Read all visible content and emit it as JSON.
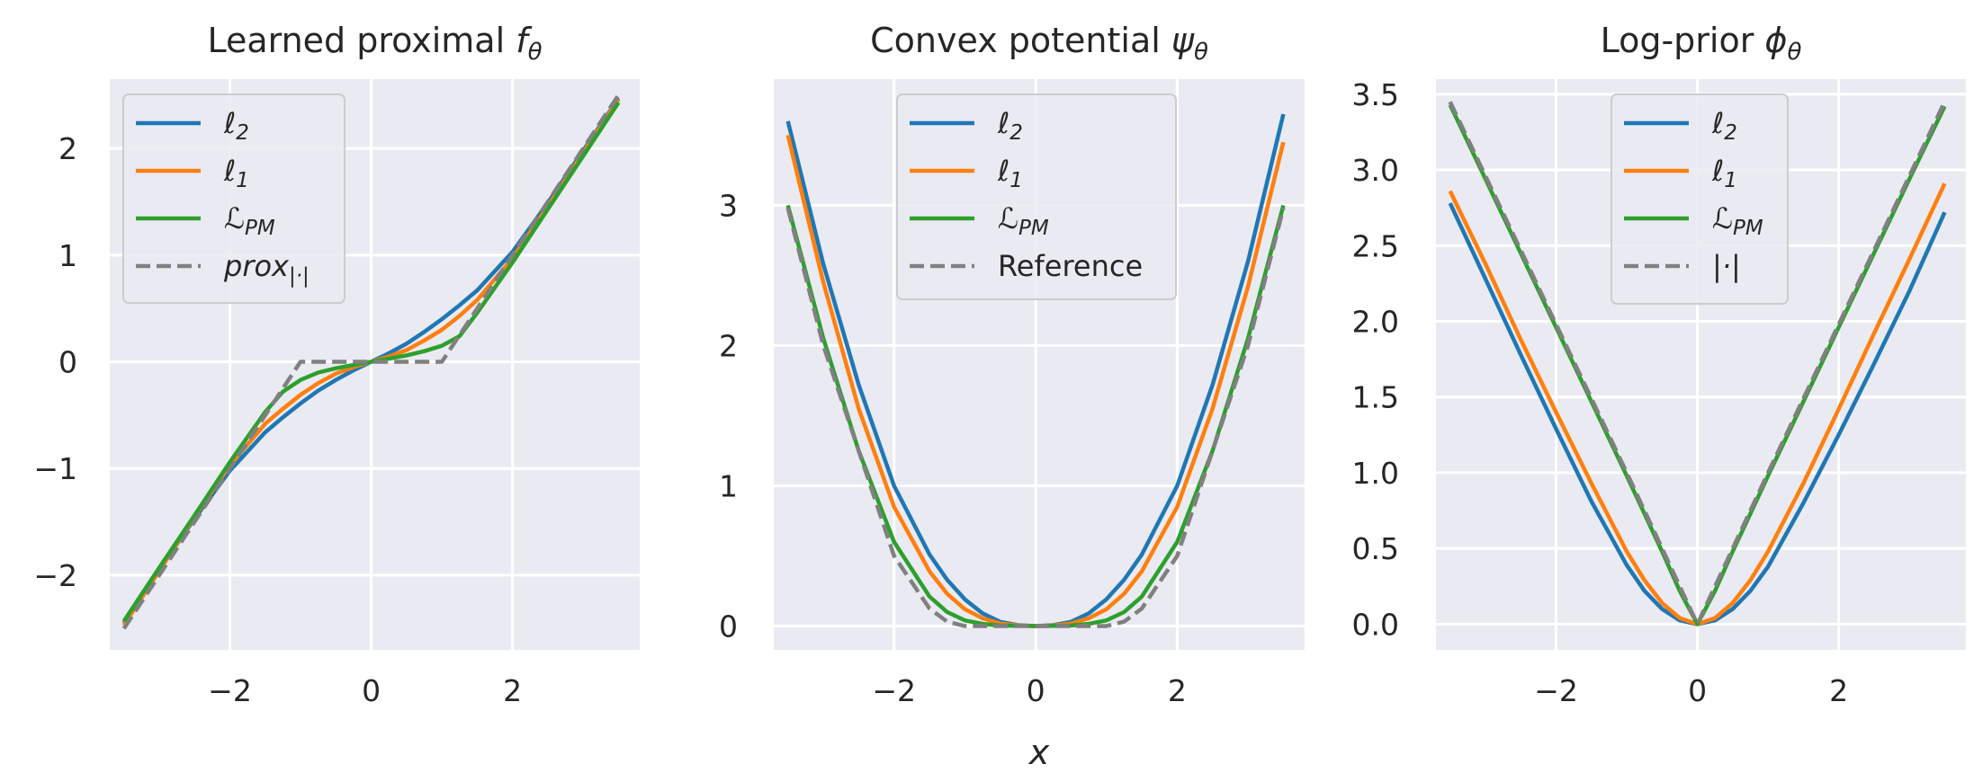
{
  "colors": {
    "l2": "#1f77b4",
    "l1": "#ff7f0e",
    "lpm": "#2ca02c",
    "reference": "#808080",
    "axes_bg": "#eaeaf2",
    "grid": "#ffffff",
    "text": "#262626"
  },
  "chart_data": [
    {
      "type": "line",
      "title": "Learned proximal f_θ",
      "title_main": "Learned proximal ",
      "title_sym": "f",
      "title_sub": "θ",
      "xlabel": "",
      "ylabel": "",
      "xlim": [
        -3.7,
        3.8
      ],
      "ylim": [
        -2.7,
        2.65
      ],
      "xticks": [
        -2,
        0,
        2
      ],
      "xtick_labels": [
        "−2",
        "0",
        "2"
      ],
      "yticks": [
        -2,
        -1,
        0,
        1,
        2
      ],
      "ytick_labels": [
        "−2",
        "−1",
        "0",
        "1",
        "2"
      ],
      "grid": true,
      "legend_placement": "upper-left",
      "x": [
        -3.5,
        -3.0,
        -2.5,
        -2.0,
        -1.5,
        -1.25,
        -1.0,
        -0.75,
        -0.5,
        -0.25,
        0.0,
        0.25,
        0.5,
        0.75,
        1.0,
        1.25,
        1.5,
        2.0,
        2.5,
        3.0,
        3.5
      ],
      "series": [
        {
          "name": "ℓ2",
          "name_main": "ℓ",
          "name_sub": "2",
          "color_key": "l2",
          "dash": false,
          "values": [
            -2.45,
            -1.95,
            -1.47,
            -1.02,
            -0.66,
            -0.52,
            -0.39,
            -0.27,
            -0.17,
            -0.08,
            0.0,
            0.08,
            0.17,
            0.28,
            0.4,
            0.53,
            0.67,
            1.03,
            1.49,
            1.98,
            2.47
          ]
        },
        {
          "name": "ℓ1",
          "name_main": "ℓ",
          "name_sub": "1",
          "color_key": "l1",
          "dash": false,
          "values": [
            -2.47,
            -1.96,
            -1.45,
            -0.97,
            -0.58,
            -0.44,
            -0.31,
            -0.2,
            -0.11,
            -0.05,
            0.0,
            0.05,
            0.11,
            0.2,
            0.3,
            0.43,
            0.58,
            0.97,
            1.46,
            1.96,
            2.46
          ]
        },
        {
          "name": "ℒPM",
          "name_main": "ℒ",
          "name_sub": "PM",
          "color_key": "lpm",
          "dash": false,
          "values": [
            -2.43,
            -1.93,
            -1.44,
            -0.94,
            -0.47,
            -0.28,
            -0.17,
            -0.1,
            -0.06,
            -0.03,
            0.0,
            0.03,
            0.06,
            0.1,
            0.15,
            0.24,
            0.46,
            0.93,
            1.43,
            1.93,
            2.43
          ]
        },
        {
          "name": "prox|·|",
          "name_main": "prox",
          "name_sub": "|·|",
          "color_key": "reference",
          "dash": true,
          "values": [
            -2.5,
            -2.0,
            -1.5,
            -1.0,
            -0.5,
            -0.25,
            0.0,
            0.0,
            0.0,
            0.0,
            0.0,
            0.0,
            0.0,
            0.0,
            0.0,
            0.25,
            0.5,
            1.0,
            1.5,
            2.0,
            2.5
          ]
        }
      ]
    },
    {
      "type": "line",
      "title": "Convex potential ψ_θ",
      "title_main": "Convex potential ",
      "title_sym": "ψ",
      "title_sub": "θ",
      "xlabel": "x",
      "ylabel": "",
      "xlim": [
        -3.7,
        3.8
      ],
      "ylim": [
        -0.17,
        3.9
      ],
      "xticks": [
        -2,
        0,
        2
      ],
      "xtick_labels": [
        "−2",
        "0",
        "2"
      ],
      "yticks": [
        0,
        1,
        2,
        3
      ],
      "ytick_labels": [
        "0",
        "1",
        "2",
        "3"
      ],
      "grid": true,
      "legend_placement": "upper-center",
      "x": [
        -3.5,
        -3.0,
        -2.5,
        -2.0,
        -1.5,
        -1.25,
        -1.0,
        -0.75,
        -0.5,
        -0.25,
        0.0,
        0.25,
        0.5,
        0.75,
        1.0,
        1.25,
        1.5,
        2.0,
        2.5,
        3.0,
        3.5
      ],
      "series": [
        {
          "name": "ℓ2",
          "name_main": "ℓ",
          "name_sub": "2",
          "color_key": "l2",
          "dash": false,
          "values": [
            3.6,
            2.58,
            1.72,
            1.0,
            0.51,
            0.33,
            0.19,
            0.09,
            0.03,
            0.006,
            0.0,
            0.006,
            0.03,
            0.09,
            0.19,
            0.33,
            0.51,
            1.0,
            1.72,
            2.6,
            3.65
          ]
        },
        {
          "name": "ℓ1",
          "name_main": "ℓ",
          "name_sub": "1",
          "color_key": "l1",
          "dash": false,
          "values": [
            3.5,
            2.45,
            1.55,
            0.85,
            0.39,
            0.23,
            0.12,
            0.055,
            0.018,
            0.004,
            0.0,
            0.004,
            0.018,
            0.055,
            0.12,
            0.23,
            0.39,
            0.85,
            1.55,
            2.42,
            3.45
          ]
        },
        {
          "name": "ℒPM",
          "name_main": "ℒ",
          "name_sub": "PM",
          "color_key": "lpm",
          "dash": false,
          "values": [
            3.0,
            2.05,
            1.25,
            0.6,
            0.21,
            0.1,
            0.04,
            0.015,
            0.004,
            0.001,
            0.0,
            0.001,
            0.004,
            0.015,
            0.04,
            0.1,
            0.21,
            0.6,
            1.25,
            2.05,
            3.0
          ]
        },
        {
          "name": "Reference",
          "name_main": "Reference",
          "name_sub": "",
          "color_key": "reference",
          "dash": true,
          "values": [
            2.98,
            2.0,
            1.25,
            0.5,
            0.125,
            0.031,
            0.0,
            0.0,
            0.0,
            0.0,
            0.0,
            0.0,
            0.0,
            0.0,
            0.0,
            0.031,
            0.125,
            0.5,
            1.25,
            2.0,
            2.98
          ]
        }
      ]
    },
    {
      "type": "line",
      "title": "Log-prior ϕ_θ",
      "title_main": "Log-prior ",
      "title_sym": "ϕ",
      "title_sub": "θ",
      "xlabel": "",
      "ylabel": "",
      "xlim": [
        -3.7,
        3.8
      ],
      "ylim": [
        -0.17,
        3.6
      ],
      "xticks": [
        -2,
        0,
        2
      ],
      "xtick_labels": [
        "−2",
        "0",
        "2"
      ],
      "yticks": [
        0.0,
        0.5,
        1.0,
        1.5,
        2.0,
        2.5,
        3.0,
        3.5
      ],
      "ytick_labels": [
        "0.0",
        "0.5",
        "1.0",
        "1.5",
        "2.0",
        "2.5",
        "3.0",
        "3.5"
      ],
      "grid": true,
      "legend_placement": "upper-center",
      "x": [
        -3.5,
        -3.0,
        -2.5,
        -2.0,
        -1.5,
        -1.0,
        -0.75,
        -0.5,
        -0.25,
        0.0,
        0.25,
        0.5,
        0.75,
        1.0,
        1.5,
        2.0,
        2.5,
        3.0,
        3.5
      ],
      "series": [
        {
          "name": "ℓ2",
          "name_main": "ℓ",
          "name_sub": "2",
          "color_key": "l2",
          "dash": false,
          "values": [
            2.78,
            2.28,
            1.78,
            1.29,
            0.81,
            0.39,
            0.22,
            0.1,
            0.025,
            0.0,
            0.025,
            0.1,
            0.22,
            0.38,
            0.8,
            1.25,
            1.72,
            2.2,
            2.72
          ]
        },
        {
          "name": "ℓ1",
          "name_main": "ℓ",
          "name_sub": "1",
          "color_key": "l1",
          "dash": false,
          "values": [
            2.86,
            2.38,
            1.88,
            1.4,
            0.93,
            0.48,
            0.29,
            0.14,
            0.04,
            0.0,
            0.04,
            0.14,
            0.29,
            0.48,
            0.93,
            1.42,
            1.92,
            2.41,
            2.91
          ]
        },
        {
          "name": "ℒPM",
          "name_main": "ℒ",
          "name_sub": "PM",
          "color_key": "lpm",
          "dash": false,
          "values": [
            3.43,
            2.94,
            2.45,
            1.96,
            1.47,
            0.98,
            0.73,
            0.48,
            0.22,
            0.0,
            0.22,
            0.48,
            0.73,
            0.98,
            1.47,
            1.96,
            2.45,
            2.94,
            3.42
          ]
        },
        {
          "name": "|·|",
          "name_main": "|·|",
          "name_sub": "",
          "color_key": "reference",
          "dash": true,
          "values": [
            3.45,
            2.96,
            2.47,
            1.98,
            1.49,
            1.0,
            0.75,
            0.5,
            0.25,
            0.0,
            0.25,
            0.5,
            0.75,
            1.0,
            1.49,
            1.98,
            2.47,
            2.96,
            3.45
          ]
        }
      ]
    }
  ]
}
